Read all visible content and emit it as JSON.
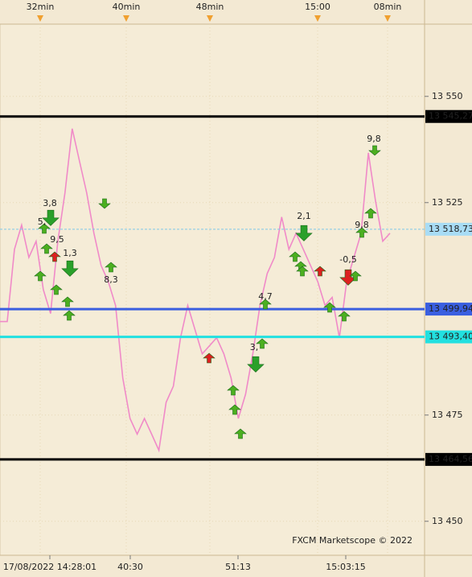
{
  "chart_data": {
    "type": "line",
    "top_time_labels": [
      "32min",
      "40min",
      "48min",
      "15:00",
      "08min"
    ],
    "bottom_time_labels": [
      "17/08/2022 14:28:01",
      "40:30",
      "51:13",
      "15:03:15"
    ],
    "series": [
      {
        "color": "#f08ac8",
        "values": [
          13497.0,
          13497.0,
          13514.0,
          13519.7,
          13512.1,
          13515.9,
          13504.5,
          13498.9,
          13515.9,
          13527.3,
          13542.4,
          13534.8,
          13527.3,
          13517.8,
          13510.2,
          13506.4,
          13500.8,
          13483.7,
          13474.2,
          13470.5,
          13474.2,
          13470.5,
          13466.7,
          13478.0,
          13481.8,
          13493.2,
          13500.8,
          13495.1,
          13489.4,
          13491.3,
          13493.2,
          13489.4,
          13483.7,
          13474.2,
          13479.9,
          13489.4,
          13500.8,
          13508.3,
          13512.1,
          13521.6,
          13514.0,
          13517.8,
          13514.0,
          13510.2,
          13506.4,
          13500.8,
          13502.7,
          13493.2,
          13506.4,
          13512.1,
          13517.8,
          13536.7,
          13525.4,
          13515.9,
          13517.8
        ]
      }
    ],
    "ylim": [
      13442,
      13567
    ],
    "yticks": [
      {
        "value": 13550,
        "label": "13 550"
      },
      {
        "value": 13525,
        "label": "13 525"
      },
      {
        "value": 13475,
        "label": "13 475"
      },
      {
        "value": 13450,
        "label": "13 450"
      }
    ],
    "levels": [
      {
        "value": 13545.27,
        "label": "13 545,27",
        "color": "#000000"
      },
      {
        "value": 13518.73,
        "label": "13 518,73",
        "color": "#7fc8e8"
      },
      {
        "value": 13499.94,
        "label": "13 499,94",
        "color": "#3a5fe0"
      },
      {
        "value": 13493.4,
        "label": "13 493,40",
        "color": "#22e0e0"
      },
      {
        "value": 13464.56,
        "label": "13 464,56",
        "color": "#000000"
      }
    ],
    "signals": [
      {
        "label": "3,8",
        "direction": "down",
        "color": "#2aa02a"
      },
      {
        "label": "5,",
        "direction": "up",
        "color": "#4caf20"
      },
      {
        "label": "9,5",
        "direction": "up",
        "color": "#dd2020"
      },
      {
        "label": "1,3",
        "direction": "down",
        "color": "#2aa02a"
      },
      {
        "label": "8,3",
        "direction": "up",
        "color": "#4caf20"
      },
      {
        "label": "4,7",
        "direction": "up",
        "color": "#4caf20"
      },
      {
        "label": "3,",
        "direction": "down",
        "color": "#2aa02a"
      },
      {
        "label": "2,1",
        "direction": "down",
        "color": "#2aa02a"
      },
      {
        "label": "-0,5",
        "direction": "down",
        "color": "#dd2020"
      },
      {
        "label": "9,8",
        "direction": "up",
        "color": "#4caf20"
      },
      {
        "label": "9,8",
        "direction": "down",
        "color": "#4caf20"
      }
    ],
    "watermark": "FXCM Marketscope © 2022"
  }
}
